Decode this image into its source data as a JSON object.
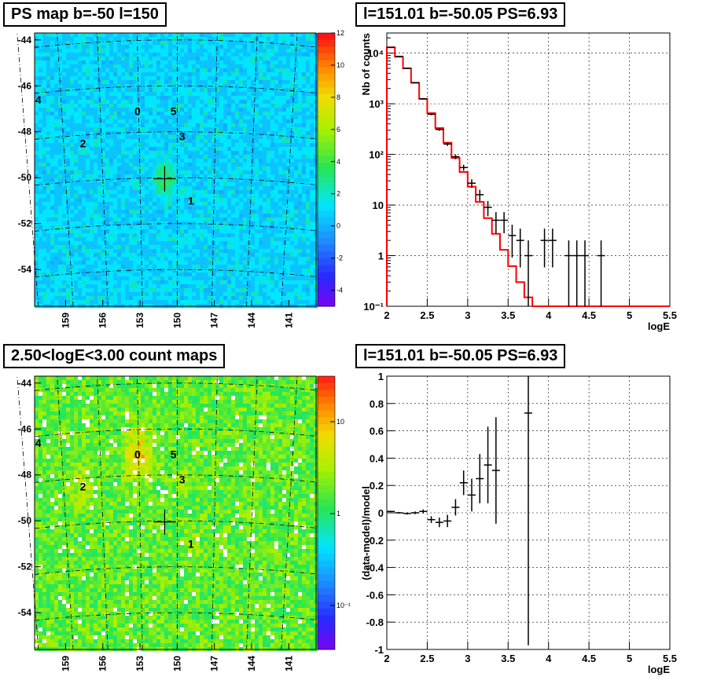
{
  "panels": {
    "ps_map": {
      "title": "PS map b=-50 l=150",
      "y_ticks": [
        "-44",
        "-46",
        "-48",
        "-50",
        "-52",
        "-54"
      ],
      "x_ticks": [
        "159",
        "156",
        "153",
        "150",
        "147",
        "144",
        "141"
      ],
      "palette_ticks": [
        "12",
        "10",
        "8",
        "6",
        "4",
        "2",
        "0",
        "-2",
        "-4"
      ],
      "sources": [
        {
          "label": "0",
          "l": 153.2,
          "b": -47.1
        },
        {
          "label": "1",
          "l": 148.9,
          "b": -51.0
        },
        {
          "label": "2",
          "l": 157.6,
          "b": -48.5
        },
        {
          "label": "3",
          "l": 149.6,
          "b": -48.2
        },
        {
          "label": "4",
          "l": 161.2,
          "b": -46.6
        },
        {
          "label": "5",
          "l": 150.3,
          "b": -47.1
        }
      ]
    },
    "count_map": {
      "title": "2.50<logE<3.00 count maps",
      "y_ticks": [
        "-44",
        "-46",
        "-48",
        "-50",
        "-52",
        "-54"
      ],
      "x_ticks": [
        "159",
        "156",
        "153",
        "150",
        "147",
        "144",
        "141"
      ],
      "palette_ticks": [
        "10",
        "1",
        "10⁻¹"
      ],
      "sources": [
        {
          "label": "0",
          "l": 153.2,
          "b": -47.1
        },
        {
          "label": "1",
          "l": 148.9,
          "b": -51.0
        },
        {
          "label": "2",
          "l": 157.6,
          "b": -48.5
        },
        {
          "label": "3",
          "l": 149.6,
          "b": -48.2
        },
        {
          "label": "4",
          "l": 161.2,
          "b": -46.6
        },
        {
          "label": "5",
          "l": 150.3,
          "b": -47.1
        }
      ]
    },
    "spectrum": {
      "title": "l=151.01 b=-50.05 PS=6.93"
    },
    "residual": {
      "title": "l=151.01 b=-50.05 PS=6.93"
    }
  },
  "chart_data": [
    {
      "type": "heatmap",
      "title": "PS map b=-50 l=150",
      "xlabel": "",
      "ylabel": "",
      "xlim": [
        161.5,
        138.8
      ],
      "ylim": [
        -55.6,
        -43.7
      ],
      "color_range": [
        -5,
        12
      ],
      "grid": true,
      "marker": {
        "l": 151.01,
        "b": -50.05
      }
    },
    {
      "type": "line",
      "title": "l=151.01 b=-50.05 PS=6.93",
      "xlabel": "logE",
      "ylabel": "Nb of counts",
      "xlim": [
        2,
        5.5
      ],
      "ylim": [
        0.1,
        25000
      ],
      "ylog": true,
      "grid": true,
      "x_ticks": [
        2,
        2.5,
        3,
        3.5,
        4,
        4.5,
        5,
        5.5
      ],
      "y_ticks": [
        {
          "v": 0.1,
          "label": "10⁻¹"
        },
        {
          "v": 1,
          "label": "1"
        },
        {
          "v": 10,
          "label": "10"
        },
        {
          "v": 100,
          "label": "10²"
        },
        {
          "v": 1000,
          "label": "10³"
        },
        {
          "v": 10000,
          "label": "10⁴"
        }
      ],
      "bin_width": 0.1,
      "model": {
        "edges": [
          2.0,
          2.1,
          2.2,
          2.3,
          2.4,
          2.5,
          2.6,
          2.7,
          2.8,
          2.9,
          3.0,
          3.1,
          3.2,
          3.3,
          3.4,
          3.5,
          3.6,
          3.7,
          3.8,
          3.9,
          4.0,
          4.1,
          4.2,
          4.3,
          4.4,
          4.5,
          4.6,
          4.7,
          4.8,
          4.9,
          5.0,
          5.1,
          5.2,
          5.3,
          5.4,
          5.5
        ],
        "values": [
          13000,
          8500,
          5000,
          2600,
          1250,
          650,
          330,
          170,
          85,
          45,
          23,
          11.5,
          5.5,
          2.7,
          1.3,
          0.62,
          0.3,
          0.15,
          0.1,
          0.1,
          0.1,
          0.1,
          0.1,
          0.1,
          0.1,
          0.1,
          0.1,
          0.1,
          0.1,
          0.1,
          0.1,
          0.1,
          0.1,
          0.1,
          0.1
        ]
      },
      "data": [
        {
          "x": 2.05,
          "y": 13000
        },
        {
          "x": 2.15,
          "y": 8600
        },
        {
          "x": 2.25,
          "y": 5000
        },
        {
          "x": 2.35,
          "y": 2600
        },
        {
          "x": 2.45,
          "y": 1250
        },
        {
          "x": 2.55,
          "y": 620
        },
        {
          "x": 2.65,
          "y": 310
        },
        {
          "x": 2.75,
          "y": 160
        },
        {
          "x": 2.85,
          "y": 90
        },
        {
          "x": 2.95,
          "y": 55
        },
        {
          "x": 3.05,
          "y": 27
        },
        {
          "x": 3.15,
          "y": 16
        },
        {
          "x": 3.25,
          "y": 9
        },
        {
          "x": 3.35,
          "y": 5
        },
        {
          "x": 3.45,
          "y": 5
        },
        {
          "x": 3.55,
          "y": 2.5
        },
        {
          "x": 3.65,
          "y": 2
        },
        {
          "x": 3.75,
          "y": 1
        },
        {
          "x": 3.95,
          "y": 2
        },
        {
          "x": 4.05,
          "y": 2
        },
        {
          "x": 4.25,
          "y": 1
        },
        {
          "x": 4.35,
          "y": 1
        },
        {
          "x": 4.45,
          "y": 1
        },
        {
          "x": 4.65,
          "y": 1
        }
      ]
    },
    {
      "type": "heatmap",
      "title": "2.50<logE<3.00 count maps",
      "xlabel": "",
      "ylabel": "",
      "xlim": [
        161.5,
        138.8
      ],
      "ylim": [
        -55.6,
        -43.7
      ],
      "color_scale": "log",
      "grid": true,
      "marker": {
        "l": 151.01,
        "b": -50.05
      }
    },
    {
      "type": "scatter",
      "title": "l=151.01 b=-50.05 PS=6.93",
      "xlabel": "logE",
      "ylabel": "(data-model)/model",
      "xlim": [
        2,
        5.5
      ],
      "ylim": [
        -1,
        1
      ],
      "grid": true,
      "x_ticks": [
        2,
        2.5,
        3,
        3.5,
        4,
        4.5,
        5,
        5.5
      ],
      "y_ticks": [
        -1,
        -0.8,
        -0.6,
        -0.4,
        -0.2,
        0,
        0.2,
        0.4,
        0.6,
        0.8,
        1
      ],
      "points": [
        {
          "x": 2.05,
          "y": 0.01,
          "err": 0.005
        },
        {
          "x": 2.15,
          "y": 0.0,
          "err": 0.006
        },
        {
          "x": 2.25,
          "y": -0.005,
          "err": 0.008
        },
        {
          "x": 2.35,
          "y": 0.0,
          "err": 0.01
        },
        {
          "x": 2.45,
          "y": 0.01,
          "err": 0.015
        },
        {
          "x": 2.55,
          "y": -0.05,
          "err": 0.025
        },
        {
          "x": 2.65,
          "y": -0.07,
          "err": 0.035
        },
        {
          "x": 2.75,
          "y": -0.06,
          "err": 0.045
        },
        {
          "x": 2.85,
          "y": 0.04,
          "err": 0.06
        },
        {
          "x": 2.95,
          "y": 0.22,
          "err": 0.09
        },
        {
          "x": 3.05,
          "y": 0.13,
          "err": 0.12
        },
        {
          "x": 3.15,
          "y": 0.25,
          "err": 0.18
        },
        {
          "x": 3.25,
          "y": 0.35,
          "err": 0.28
        },
        {
          "x": 3.35,
          "y": 0.31,
          "err": 0.39
        },
        {
          "x": 3.75,
          "y": 0.73,
          "err": 1.7
        }
      ]
    }
  ]
}
